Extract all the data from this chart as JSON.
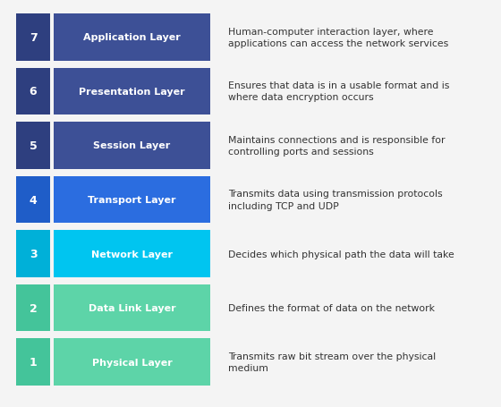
{
  "layers": [
    {
      "number": "7",
      "name": "Application Layer",
      "description": "Human-computer interaction layer, where\napplications can access the network services",
      "num_color": "#2e3f7f",
      "bar_color": "#3d5096"
    },
    {
      "number": "6",
      "name": "Presentation Layer",
      "description": "Ensures that data is in a usable format and is\nwhere data encryption occurs",
      "num_color": "#2e3f7f",
      "bar_color": "#3d5096"
    },
    {
      "number": "5",
      "name": "Session Layer",
      "description": "Maintains connections and is responsible for\ncontrolling ports and sessions",
      "num_color": "#2e3f7f",
      "bar_color": "#3d5096"
    },
    {
      "number": "4",
      "name": "Transport Layer",
      "description": "Transmits data using transmission protocols\nincluding TCP and UDP",
      "num_color": "#1f5dc8",
      "bar_color": "#2b6de0"
    },
    {
      "number": "3",
      "name": "Network Layer",
      "description": "Decides which physical path the data will take",
      "num_color": "#00b0d8",
      "bar_color": "#00c5f0"
    },
    {
      "number": "2",
      "name": "Data Link Layer",
      "description": "Defines the format of data on the network",
      "num_color": "#44c49a",
      "bar_color": "#5dd4a8"
    },
    {
      "number": "1",
      "name": "Physical Layer",
      "description": "Transmits raw bit stream over the physical\nmedium",
      "num_color": "#44c49a",
      "bar_color": "#5dd4a8"
    }
  ],
  "background_color": "#f4f4f4",
  "text_color": "#333333",
  "label_text_color": "#ffffff",
  "fig_width": 5.6,
  "fig_height": 4.56,
  "dpi": 100
}
